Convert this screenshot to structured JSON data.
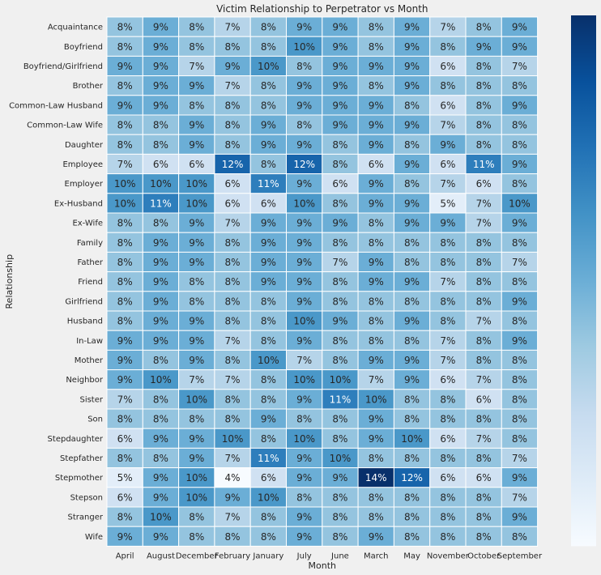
{
  "chart_data": {
    "type": "heatmap",
    "title": "Victim Relationship to Perpetrator vs Month",
    "xlabel": "Month",
    "ylabel": "Relationship",
    "x_categories": [
      "April",
      "August",
      "December",
      "February",
      "January",
      "July",
      "June",
      "March",
      "May",
      "November",
      "October",
      "September"
    ],
    "y_categories": [
      "Acquaintance",
      "Boyfriend",
      "Boyfriend/Girlfriend",
      "Brother",
      "Common-Law Husband",
      "Common-Law Wife",
      "Daughter",
      "Employee",
      "Employer",
      "Ex-Husband",
      "Ex-Wife",
      "Family",
      "Father",
      "Friend",
      "Girlfriend",
      "Husband",
      "In-Law",
      "Mother",
      "Neighbor",
      "Sister",
      "Son",
      "Stepdaughter",
      "Stepfather",
      "Stepmother",
      "Stepson",
      "Stranger",
      "Wife"
    ],
    "values": [
      [
        8,
        9,
        8,
        7,
        8,
        9,
        9,
        8,
        9,
        7,
        8,
        9
      ],
      [
        8,
        9,
        8,
        8,
        8,
        10,
        9,
        8,
        9,
        8,
        9,
        9
      ],
      [
        9,
        9,
        7,
        9,
        10,
        8,
        9,
        9,
        9,
        6,
        8,
        7
      ],
      [
        8,
        9,
        9,
        7,
        8,
        9,
        9,
        8,
        9,
        8,
        8,
        8
      ],
      [
        9,
        9,
        8,
        8,
        8,
        9,
        9,
        9,
        8,
        6,
        8,
        9
      ],
      [
        8,
        8,
        9,
        8,
        9,
        8,
        9,
        9,
        9,
        7,
        8,
        8
      ],
      [
        8,
        8,
        9,
        8,
        9,
        9,
        8,
        9,
        8,
        9,
        8,
        8
      ],
      [
        7,
        6,
        6,
        12,
        8,
        12,
        8,
        6,
        9,
        6,
        11,
        9
      ],
      [
        10,
        10,
        10,
        6,
        11,
        9,
        6,
        9,
        8,
        7,
        6,
        8
      ],
      [
        10,
        11,
        10,
        6,
        6,
        10,
        8,
        9,
        9,
        5,
        7,
        10
      ],
      [
        8,
        8,
        9,
        7,
        9,
        9,
        9,
        8,
        9,
        9,
        7,
        9
      ],
      [
        8,
        9,
        9,
        8,
        9,
        9,
        8,
        8,
        8,
        8,
        8,
        8
      ],
      [
        8,
        9,
        9,
        8,
        9,
        9,
        7,
        9,
        8,
        8,
        8,
        7
      ],
      [
        8,
        9,
        8,
        8,
        9,
        9,
        8,
        9,
        9,
        7,
        8,
        8
      ],
      [
        8,
        9,
        8,
        8,
        8,
        9,
        8,
        8,
        8,
        8,
        8,
        9
      ],
      [
        8,
        9,
        9,
        8,
        8,
        10,
        9,
        8,
        9,
        8,
        7,
        8
      ],
      [
        9,
        9,
        9,
        7,
        8,
        9,
        8,
        8,
        8,
        7,
        8,
        9
      ],
      [
        9,
        8,
        9,
        8,
        10,
        7,
        8,
        9,
        9,
        7,
        8,
        8
      ],
      [
        9,
        10,
        7,
        7,
        8,
        10,
        10,
        7,
        9,
        6,
        7,
        8
      ],
      [
        7,
        8,
        10,
        8,
        8,
        9,
        11,
        10,
        8,
        8,
        6,
        8
      ],
      [
        8,
        8,
        8,
        8,
        9,
        8,
        8,
        9,
        8,
        8,
        8,
        8
      ],
      [
        6,
        9,
        9,
        10,
        8,
        10,
        8,
        9,
        10,
        6,
        7,
        8
      ],
      [
        8,
        8,
        9,
        7,
        11,
        9,
        10,
        8,
        8,
        8,
        8,
        7
      ],
      [
        5,
        9,
        10,
        4,
        6,
        9,
        9,
        14,
        12,
        6,
        6,
        9
      ],
      [
        6,
        9,
        10,
        9,
        10,
        8,
        8,
        8,
        8,
        8,
        8,
        7
      ],
      [
        8,
        10,
        8,
        7,
        8,
        9,
        8,
        8,
        8,
        8,
        8,
        9
      ],
      [
        9,
        9,
        8,
        8,
        8,
        9,
        8,
        9,
        8,
        8,
        8,
        8
      ]
    ],
    "value_format": "percent",
    "colormap": [
      "#f7fbff",
      "#deebf7",
      "#c6dbef",
      "#9ecae1",
      "#6baed6",
      "#4292c6",
      "#2171b5",
      "#08519c",
      "#08306b"
    ],
    "colorbar": true,
    "grid": false
  }
}
